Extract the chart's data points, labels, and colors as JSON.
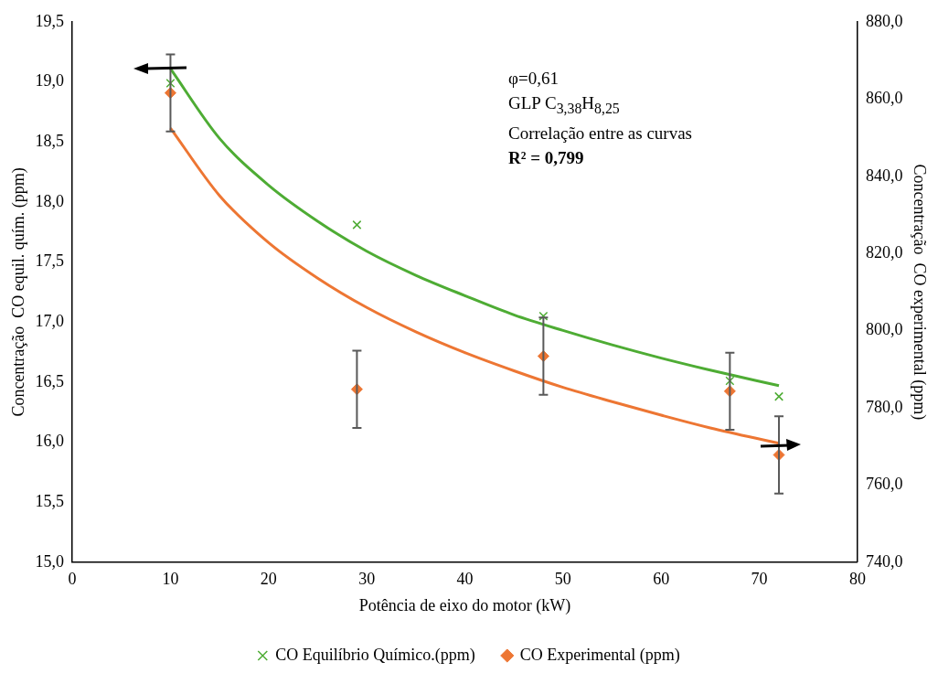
{
  "chart_data": {
    "type": "scatter",
    "xlabel": "Potência de eixo do motor (kW)",
    "ylabel": "Concentração  CO equil. quím. (ppm)",
    "y2label": "Concentração  CO experimental (ppm)",
    "xlim": [
      0,
      80
    ],
    "xticks": [
      0,
      10,
      20,
      30,
      40,
      50,
      60,
      70,
      80
    ],
    "ylim": [
      15,
      19.5
    ],
    "yticks": [
      {
        "value": 15,
        "label": "15,0"
      },
      {
        "value": 15.5,
        "label": "15,5"
      },
      {
        "value": 16,
        "label": "16,0"
      },
      {
        "value": 16.5,
        "label": "16,5"
      },
      {
        "value": 17,
        "label": "17,0"
      },
      {
        "value": 17.5,
        "label": "17,5"
      },
      {
        "value": 18,
        "label": "18,0"
      },
      {
        "value": 18.5,
        "label": "18,5"
      },
      {
        "value": 19,
        "label": "19,0"
      },
      {
        "value": 19.5,
        "label": "19,5"
      }
    ],
    "y2lim": [
      740,
      880
    ],
    "y2ticks": [
      {
        "value": 740,
        "label": "740,0"
      },
      {
        "value": 760,
        "label": "760,0"
      },
      {
        "value": 780,
        "label": "780,0"
      },
      {
        "value": 800,
        "label": "800,0"
      },
      {
        "value": 820,
        "label": "820,0"
      },
      {
        "value": 840,
        "label": "840,0"
      },
      {
        "value": 860,
        "label": "860,0"
      },
      {
        "value": 880,
        "label": "880,0"
      }
    ],
    "x": [
      10,
      29,
      48,
      67,
      72
    ],
    "series": [
      {
        "name": "CO Equilíbrio Químico.(ppm)",
        "color": "#4eac34",
        "marker": "cross",
        "values": [
          18.99,
          17.81,
          17.05,
          16.51,
          16.38
        ]
      },
      {
        "name": "CO Experimental (ppm)",
        "color": "#ed7633",
        "marker": "diamond",
        "axis": "y2",
        "values": [
          861.6,
          784.8,
          793.4,
          784.3,
          767.8
        ],
        "errors": [
          10,
          10,
          10,
          10,
          10
        ]
      },
      {
        "type": "line",
        "color": "#4eac34",
        "marker": "none",
        "x": [
          10,
          15,
          20,
          25,
          30,
          35,
          40,
          45,
          50,
          55,
          60,
          65,
          72
        ],
        "values": [
          19.11,
          18.53,
          18.14,
          17.84,
          17.59,
          17.39,
          17.22,
          17.06,
          16.93,
          16.81,
          16.7,
          16.6,
          16.47
        ]
      },
      {
        "type": "line",
        "color": "#ed7633",
        "marker": "none",
        "axis": "y2",
        "x": [
          10,
          15,
          20,
          25,
          30,
          35,
          40,
          45,
          50,
          55,
          60,
          65,
          72
        ],
        "values": [
          852.5,
          835.0,
          822.8,
          813.6,
          806.0,
          799.7,
          794.3,
          789.6,
          785.3,
          781.6,
          778.1,
          774.8,
          770.8
        ]
      }
    ],
    "annotations": [
      "φ=0,61",
      "GLP C$_{3,38}$H$_{8,25}$",
      "Correlação entre as curvas",
      "R² = 0,799"
    ],
    "legend": "bottom",
    "grid": false
  }
}
